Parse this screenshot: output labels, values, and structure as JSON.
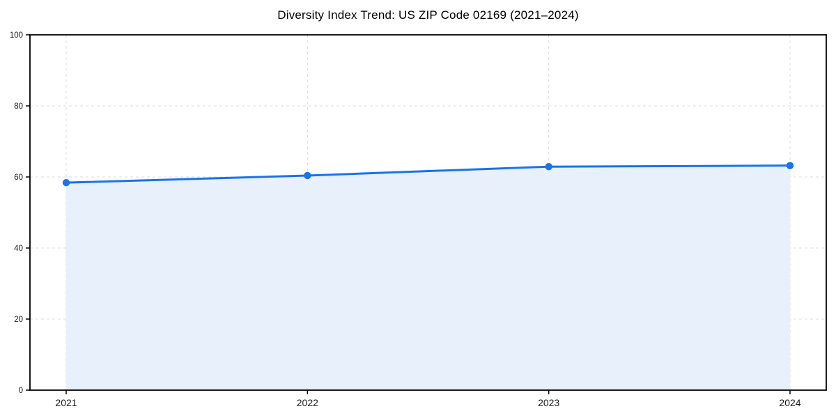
{
  "chart_data": {
    "type": "area",
    "title": "Diversity Index Trend: US ZIP Code 02169 (2021–2024)",
    "series_name": "Diversity Index",
    "categories": [
      "2021",
      "2022",
      "2023",
      "2024"
    ],
    "values": [
      58.4,
      60.4,
      62.9,
      63.2
    ],
    "xlabel": "",
    "ylabel": "",
    "ylim": [
      0,
      100
    ],
    "yticks": [
      0,
      20,
      40,
      60,
      80,
      100
    ],
    "grid": true,
    "grid_style": "dashed",
    "legend_position": "none",
    "colors": {
      "line": "#1a73e8",
      "marker": "#1a73e8",
      "fill": "#e8f0fc",
      "grid": "#dcdcdc",
      "axis": "#000000",
      "tick_text": "#1a1a1a",
      "title_text": "#000000",
      "background": "#ffffff"
    }
  }
}
